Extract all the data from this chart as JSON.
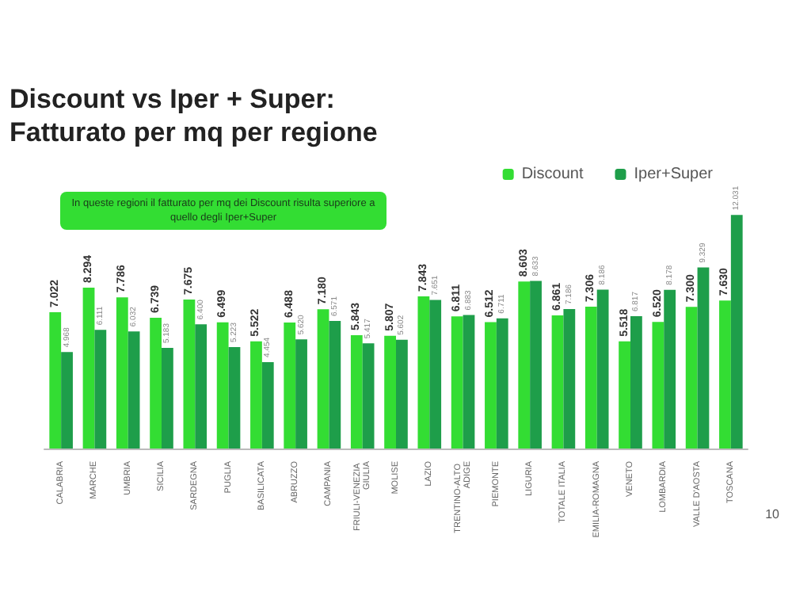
{
  "chart_data": {
    "type": "bar",
    "title": "Discount vs Iper + Super:\nFatturato per mq per regione",
    "categories": [
      "CALABRIA",
      "MARCHE",
      "UMBRIA",
      "SICILIA",
      "SARDEGNA",
      "PUGLIA",
      "BASILICATA",
      "ABRUZZO",
      "CAMPANIA",
      "FRIULI-VENEZIA GIULIA",
      "MOLISE",
      "LAZIO",
      "TRENTINO-ALTO ADIGE",
      "PIEMONTE",
      "LIGURIA",
      "TOTALE ITALIA",
      "EMILIA-ROMAGNA",
      "VENETO",
      "LOMBARDIA",
      "VALLE D'AOSTA",
      "TOSCANA"
    ],
    "series": [
      {
        "name": "Discount",
        "color": "#33dd33",
        "values": [
          7022,
          8294,
          7786,
          6739,
          7675,
          6499,
          5522,
          6488,
          7180,
          5843,
          5807,
          7843,
          6811,
          6512,
          8603,
          6861,
          7306,
          5518,
          6520,
          7300,
          7630
        ],
        "value_labels": [
          "7.022",
          "8.294",
          "7.786",
          "6.739",
          "7.675",
          "6.499",
          "5.522",
          "6.488",
          "7.180",
          "5.843",
          "5.807",
          "7.843",
          "6.811",
          "6.512",
          "8.603",
          "6.861",
          "7.306",
          "5.518",
          "6.520",
          "7.300",
          "7.630"
        ]
      },
      {
        "name": "Iper+Super",
        "color": "#1e9e4a",
        "values": [
          4968,
          6111,
          6032,
          5183,
          6400,
          5223,
          4454,
          5620,
          6571,
          5417,
          5602,
          7651,
          6883,
          6711,
          8633,
          7186,
          8186,
          6817,
          8178,
          9329,
          12031
        ],
        "value_labels": [
          "4.968",
          "6.111",
          "6.032",
          "5.183",
          "6.400",
          "5.223",
          "4.454",
          "5.620",
          "6.571",
          "5.417",
          "5.602",
          "7.651",
          "6.883",
          "6.711",
          "8.633",
          "7.186",
          "8.186",
          "6.817",
          "8.178",
          "9.329",
          "12.031"
        ]
      }
    ],
    "annotations": [
      "In queste regioni il fatturato per mq dei Discount risulta superiore a quello degli Iper+Super",
      "10"
    ],
    "legend": "top right",
    "grid": false
  }
}
